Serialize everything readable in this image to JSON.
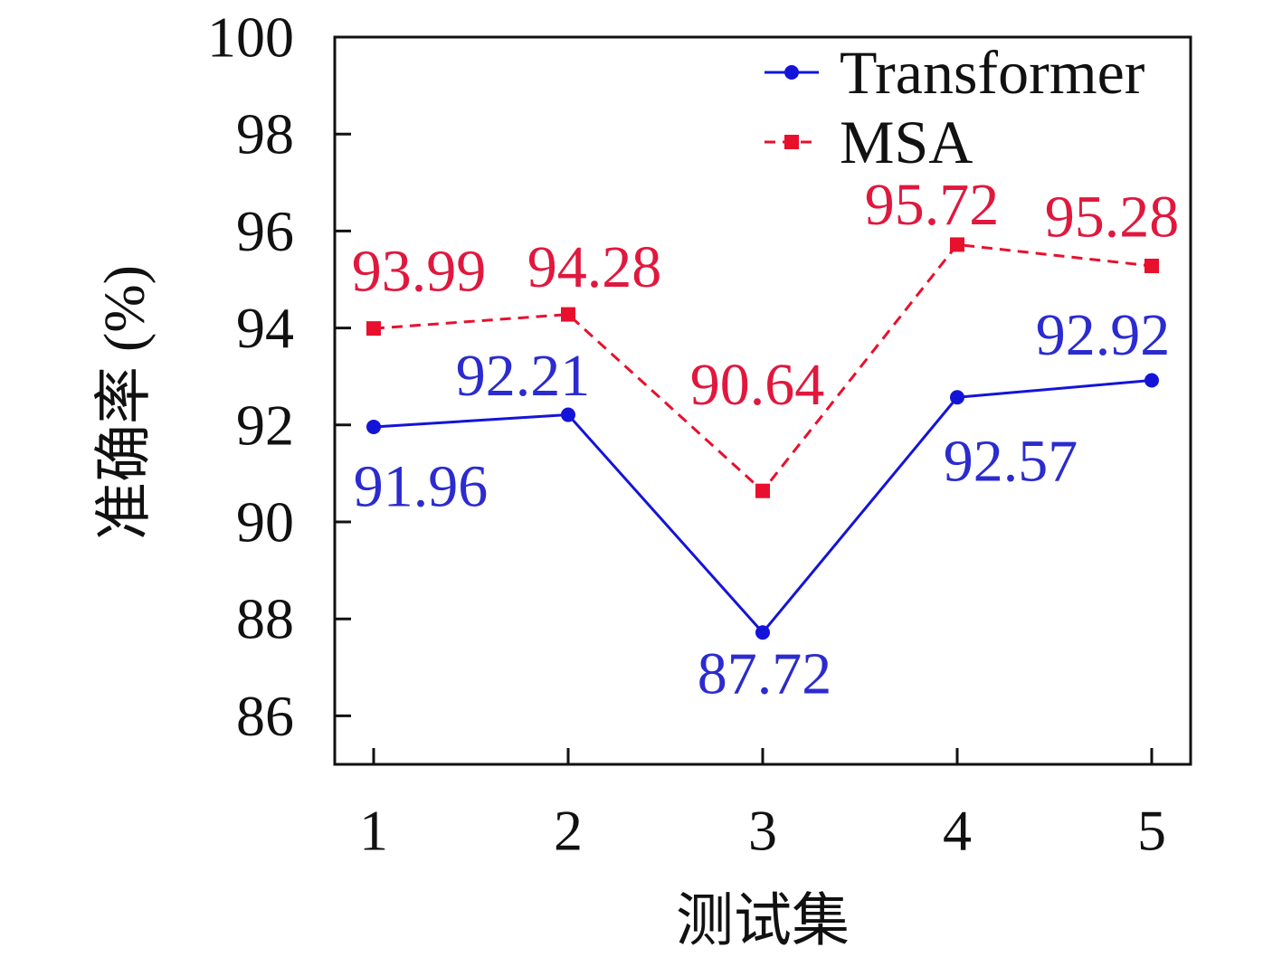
{
  "chart_data": {
    "type": "line",
    "x": [
      1,
      2,
      3,
      4,
      5
    ],
    "yticks": [
      86,
      88,
      90,
      92,
      94,
      96,
      98,
      100
    ],
    "xlim": [
      0.8,
      5.2
    ],
    "ylim": [
      85,
      100
    ],
    "xlabel": "测试集",
    "ylabel": "准确率 (%)",
    "legend": "top-right",
    "grid": false,
    "data_labels": true,
    "series": [
      {
        "name": "Transformer",
        "values": [
          91.96,
          92.21,
          87.72,
          92.57,
          92.92
        ],
        "color": "#1414d8",
        "label_color": "#2b2bcf",
        "marker": "circle",
        "line_style": "solid"
      },
      {
        "name": "MSA",
        "values": [
          93.99,
          94.28,
          90.64,
          95.72,
          95.28
        ],
        "color": "#e8102c",
        "label_color": "#e0183e",
        "marker": "square",
        "line_style": "dashed"
      }
    ]
  }
}
